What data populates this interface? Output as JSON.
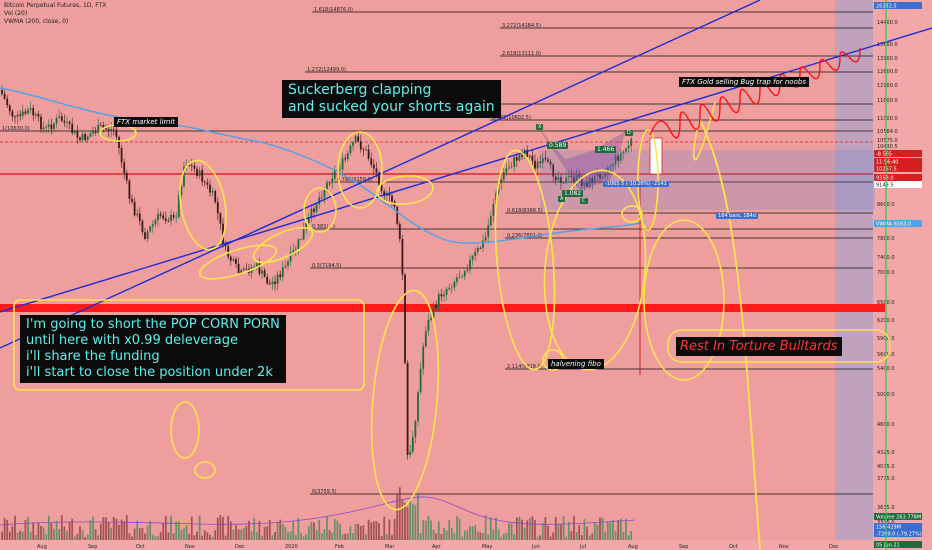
{
  "header": {
    "symbol_line": "Bitcoin Perpetual Futures, 1D, FTX",
    "vol_line": "Vol (20)",
    "vwma_line": "VWMA (200, close, 0)"
  },
  "annotations": {
    "ftx_market_limit": "FTX market limit",
    "suckerberg_line1": "Suckerberg clapping",
    "suckerberg_line2": "and sucked your shorts again",
    "short_line1": "I'm going to short the POP CORN PORN",
    "short_line2": "until here with x0.99 deleverage",
    "short_line3": "i'll share the funding",
    "short_line4": "i'll start to close the position under 2k",
    "rest_in_torture": "Rest In Torture Bulltards",
    "ftx_gold": "FTX Gold selling Bug trap for noobs",
    "halvening_fibo": "halvening fibo",
    "pattern_ratio_1": "0.589",
    "pattern_ratio_2": "1.466",
    "pattern_ratio_3": "1.082",
    "pattern_A": "A",
    "pattern_C": "C",
    "pattern_D": "D",
    "pattern_X": "X",
    "range_label": "-1065.5 (-10.26%) -2141",
    "bars_label": "184 bars, 184d"
  },
  "fib_labels": [
    "1.618(14876.0)",
    "3.272(14184.5)",
    "2.618(13111.0)",
    "1.272(12499.0)",
    "1.272(10602.5)",
    "1(10630.0)",
    "0.786(9159.0)",
    "0.618(8368.5)",
    "0.5(7194.5)",
    "0.382(...)",
    "0.236(7801.0)",
    "0(3759.5)",
    "2.114(5318.0)"
  ],
  "price_axis": [
    "15200.0",
    "14400.0",
    "13600.0",
    "13100.0",
    "12600.0",
    "12100.0",
    "11600.0",
    "11000.0",
    "10584.0",
    "10575.0",
    "10430.5",
    "10082.0",
    "9640.0",
    "9287.5",
    "9149.5",
    "8600.0",
    "8163.0",
    "7800.0",
    "7400.0",
    "7000.0",
    "6500.0",
    "6200.0",
    "5900.0",
    "5600.0",
    "5400.0",
    "5000.0",
    "4600.0",
    "4325.0",
    "4075.0",
    "3775.0",
    "3635.0",
    "3375.0"
  ],
  "price_tags": {
    "top": "26332.5",
    "vwma": "VWMA 8163.0",
    "neg": "-8.565",
    "p1": "11:56:40",
    "p2": "10267.5",
    "p3": "9358.0",
    "p4": "9149.5",
    "vol": "Volume 263.778M",
    "vol2": "156.429M",
    "bottom1": "-7289.0 (-79.27%)",
    "bottom2": "05 Jun 21"
  },
  "time_axis": [
    "Aug",
    "Sep",
    "Oct",
    "Nov",
    "Dec",
    "2020",
    "Feb",
    "Mar",
    "Apr",
    "May",
    "Jun",
    "Jul",
    "Aug",
    "Sep",
    "Oct",
    "Nov",
    "Dec"
  ],
  "colors": {
    "background": "#ef9e9e",
    "candle_up": "#1e6b3c",
    "candle_down": "#3a1b1b",
    "trend_line": "#1d2bd4",
    "vwma": "#4da3e6",
    "annotation_yellow": "#ffe44d",
    "red_band": "#ff1a1a",
    "forecast_red": "#ff1010",
    "projection_blue": "#9aa6d8"
  }
}
